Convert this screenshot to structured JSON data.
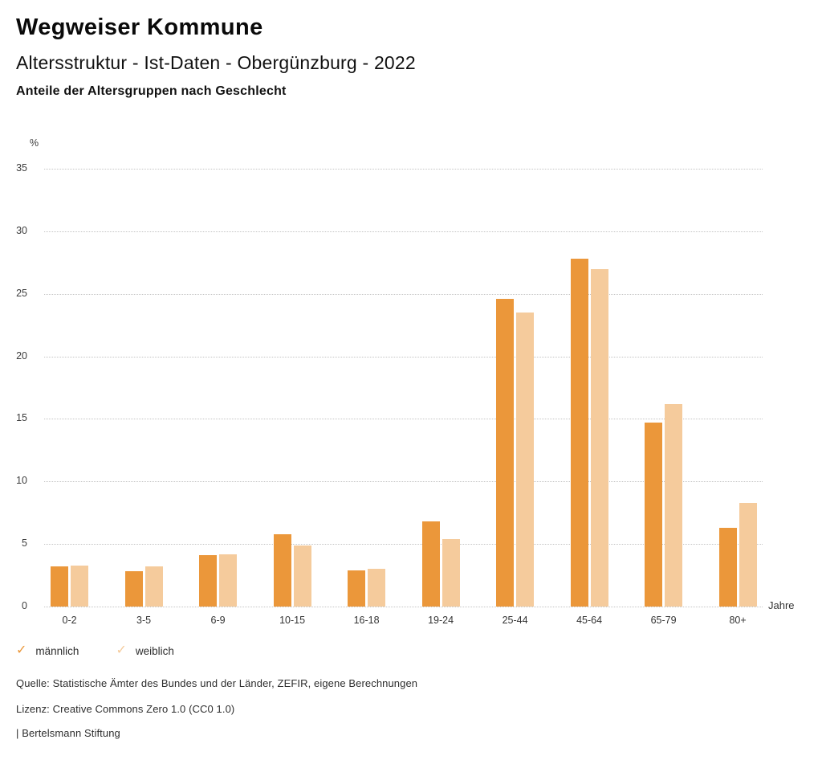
{
  "header": {
    "title": "Wegweiser Kommune",
    "subtitle": "Altersstruktur - Ist-Daten - Obergünzburg - 2022",
    "heading": "Anteile der Altersgruppen nach Geschlecht"
  },
  "chart_data": {
    "type": "bar",
    "title": "Anteile der Altersgruppen nach Geschlecht",
    "unit_label": "%",
    "xlabel": "Jahre",
    "ylim": [
      0,
      35
    ],
    "ytick_step": 5,
    "grid": true,
    "gridline_style": "dotted",
    "legend_position": "bottom-left",
    "categories": [
      "0-2",
      "3-5",
      "6-9",
      "10-15",
      "16-18",
      "19-24",
      "25-44",
      "45-64",
      "65-79",
      "80+"
    ],
    "series": [
      {
        "name": "männlich",
        "color": "#EB973A",
        "values": [
          3.2,
          2.8,
          4.1,
          5.8,
          2.9,
          6.8,
          24.6,
          27.8,
          14.7,
          6.3
        ]
      },
      {
        "name": "weiblich",
        "color": "#F5CB9C",
        "values": [
          3.3,
          3.2,
          4.2,
          4.9,
          3.0,
          5.4,
          23.5,
          27.0,
          16.2,
          8.3
        ]
      }
    ]
  },
  "legend": {
    "check_icon": "✓"
  },
  "footer": {
    "source": "Quelle: Statistische Ämter des Bundes und der Länder, ZEFIR, eigene Berechnungen",
    "license": "Lizenz: Creative Commons Zero 1.0 (CC0 1.0)",
    "attribution": "| Bertelsmann Stiftung"
  }
}
